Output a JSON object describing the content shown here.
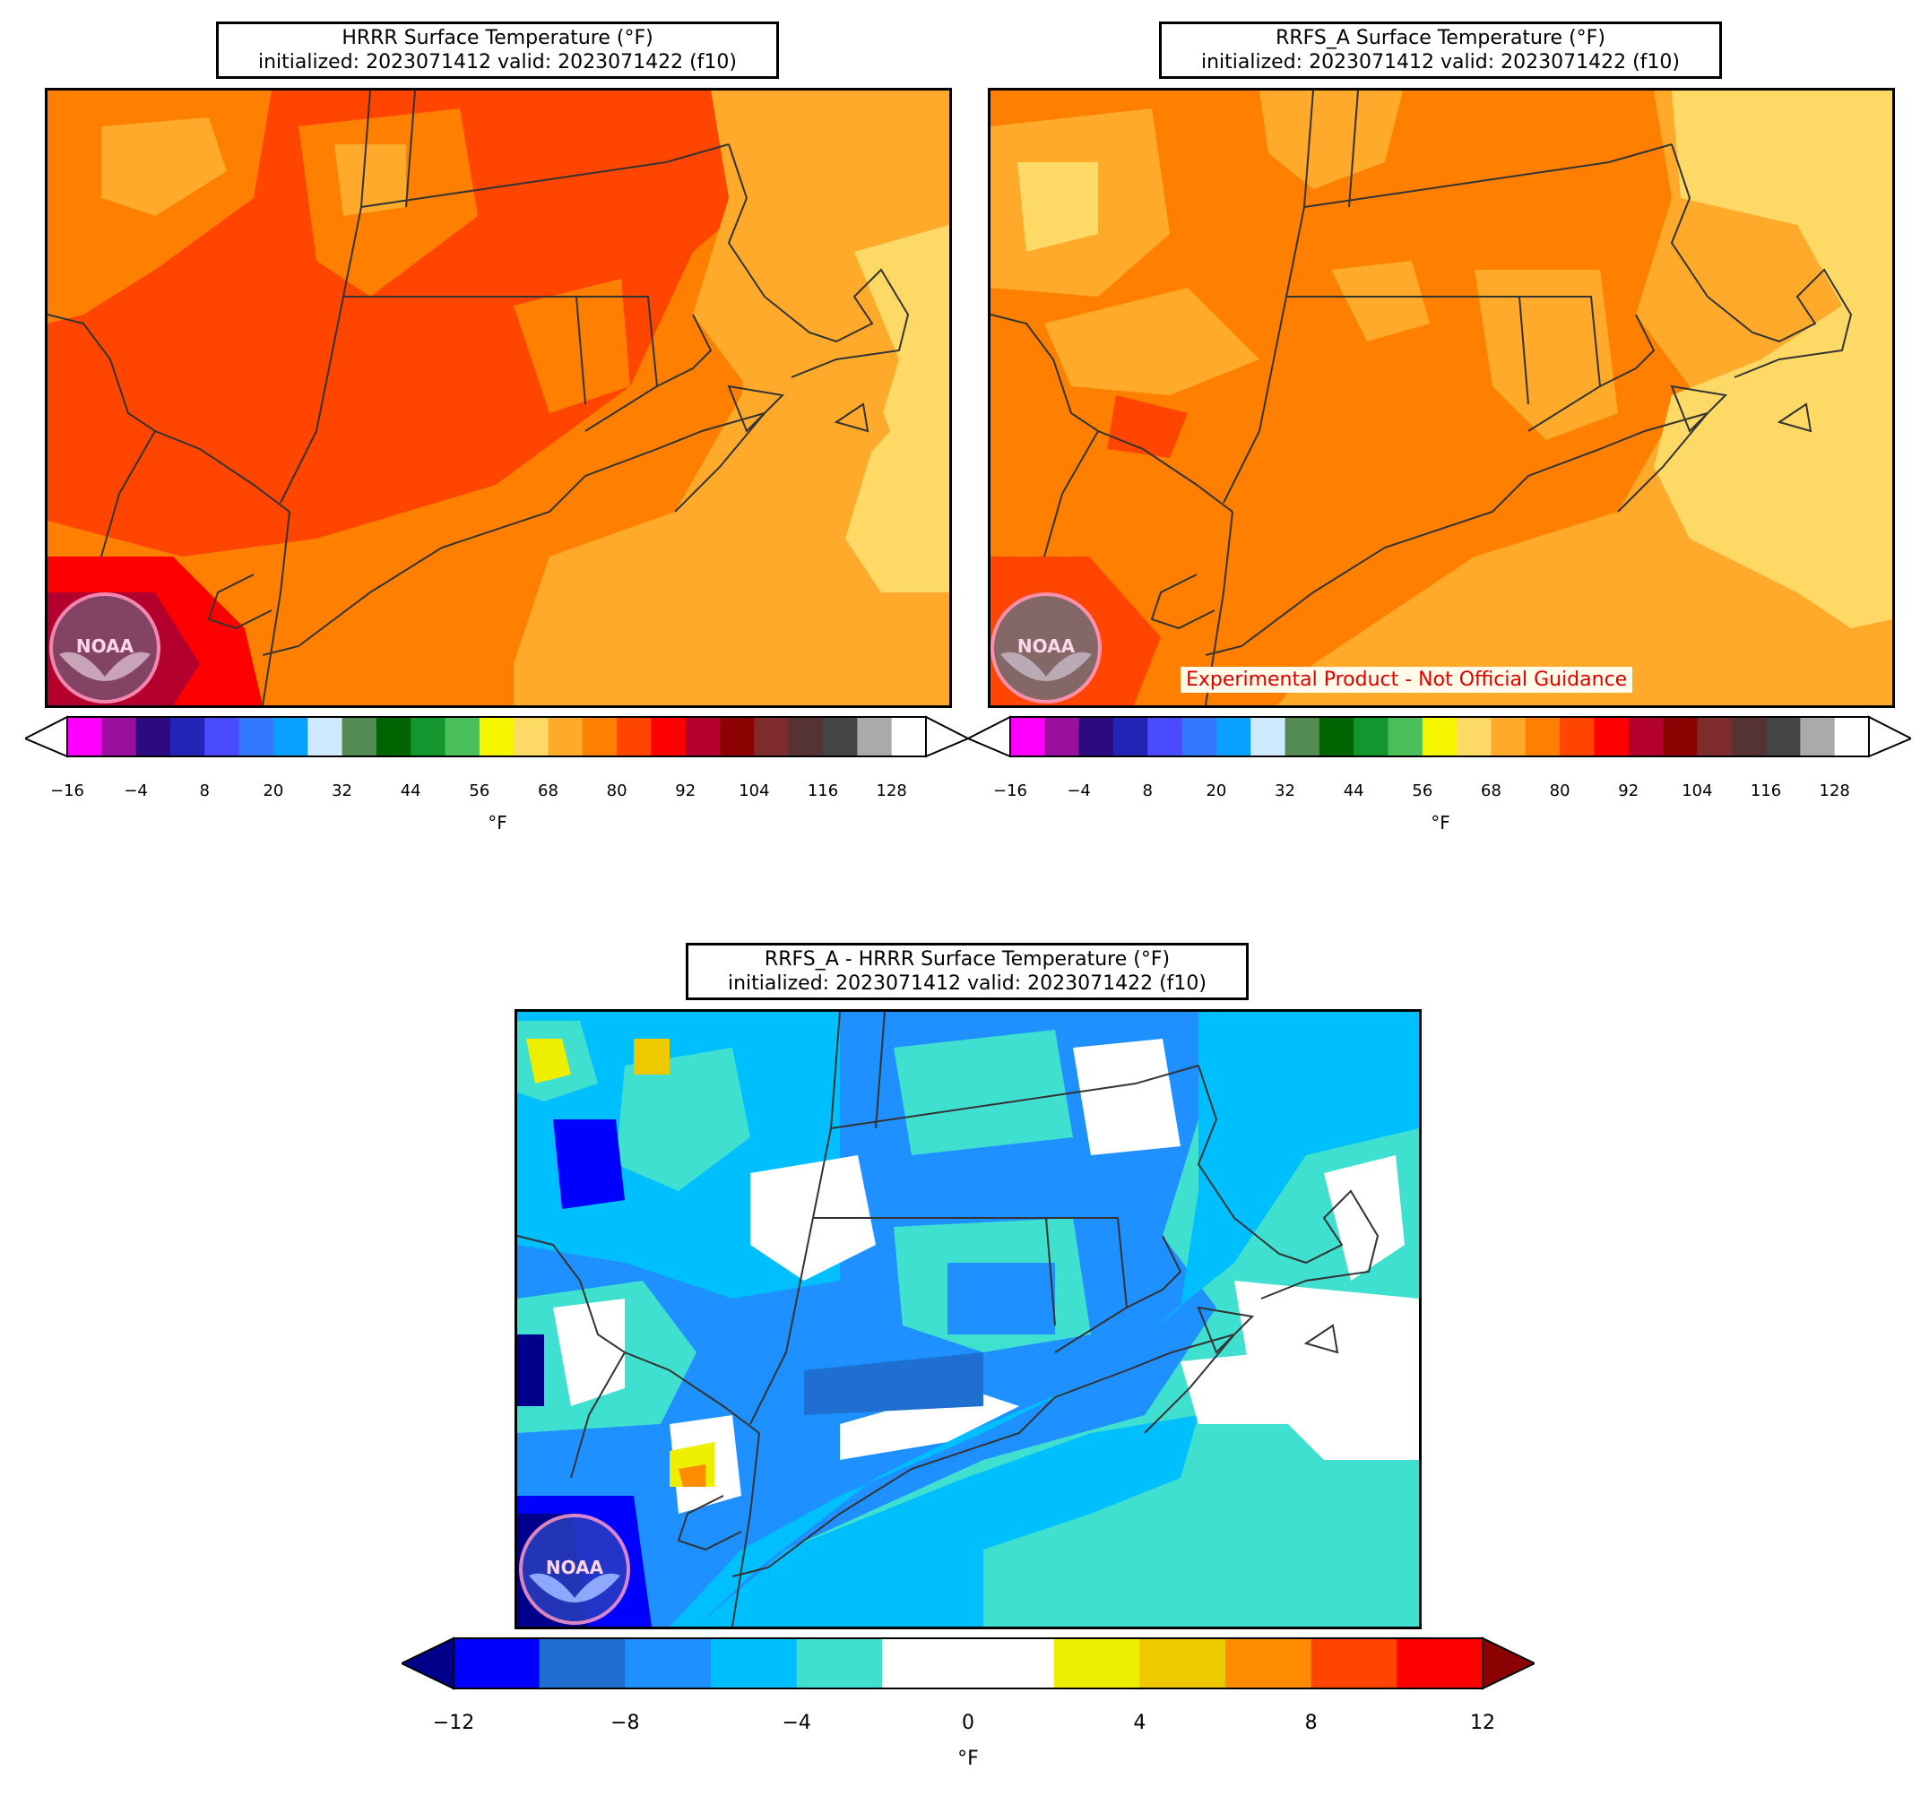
{
  "panels": [
    {
      "title_line1": "HRRR Surface Temperature (°F)",
      "title_line2": "initialized: 2023071412 valid: 2023071422 (f10)"
    },
    {
      "title_line1": "RRFS_A Surface Temperature (°F)",
      "title_line2": "initialized: 2023071412 valid: 2023071422 (f10)"
    },
    {
      "title_line1": "RRFS_A - HRRR Surface Temperature (°F)",
      "title_line2": "initialized: 2023071412 valid: 2023071422 (f10)"
    }
  ],
  "disclaimer": "Experimental Product - Not Official Guidance",
  "logo_text": "NOAA",
  "temp_colorbar": {
    "units": "°F",
    "ticks": [
      "−16",
      "−4",
      "8",
      "20",
      "32",
      "44",
      "56",
      "68",
      "80",
      "92",
      "104",
      "116",
      "128"
    ],
    "colors": [
      "#ff00ff",
      "#9b0f9e",
      "#2d0a80",
      "#2323b5",
      "#4a4aff",
      "#3377ff",
      "#0aa0ff",
      "#cfeaff",
      "#548b54",
      "#006400",
      "#12962d",
      "#4abf5a",
      "#f5f500",
      "#ffd966",
      "#ffaa2b",
      "#ff8000",
      "#ff4500",
      "#ff0000",
      "#b3002d",
      "#8b0000",
      "#7d2b2b",
      "#553333",
      "#444444",
      "#aaaaaa",
      "#ffffff"
    ],
    "under_color": "#ffffff",
    "over_color": "#ffffff"
  },
  "diff_colorbar": {
    "units": "°F",
    "ticks": [
      "−12",
      "−8",
      "−4",
      "0",
      "4",
      "8",
      "12"
    ],
    "colors": [
      "#0000ff",
      "#1e6fcf",
      "#1e90ff",
      "#00bfff",
      "#40e0d0",
      "#ffffff",
      "#ffffff",
      "#eeee00",
      "#eec900",
      "#ff8c00",
      "#ff4500",
      "#ff0000"
    ],
    "under_color": "#00008b",
    "over_color": "#8b0000"
  },
  "map_colors": {
    "hrrr": {
      "base": "#ff8000",
      "hot": "#ff4500",
      "warm": "#ffaa2b",
      "cool": "#ffd966",
      "hottest": "#ff0000"
    },
    "rrfs": {
      "base": "#ff8000",
      "hot": "#ff4500",
      "warm": "#ffaa2b",
      "cool": "#ffd966"
    },
    "diff": {
      "base": "#00bfff",
      "mid": "#40e0d0",
      "neg": "#1e90ff",
      "neg2": "#0000ff",
      "neg3": "#00008b",
      "white": "#ffffff",
      "pos": "#eeee00",
      "pos2": "#ff8c00"
    }
  }
}
